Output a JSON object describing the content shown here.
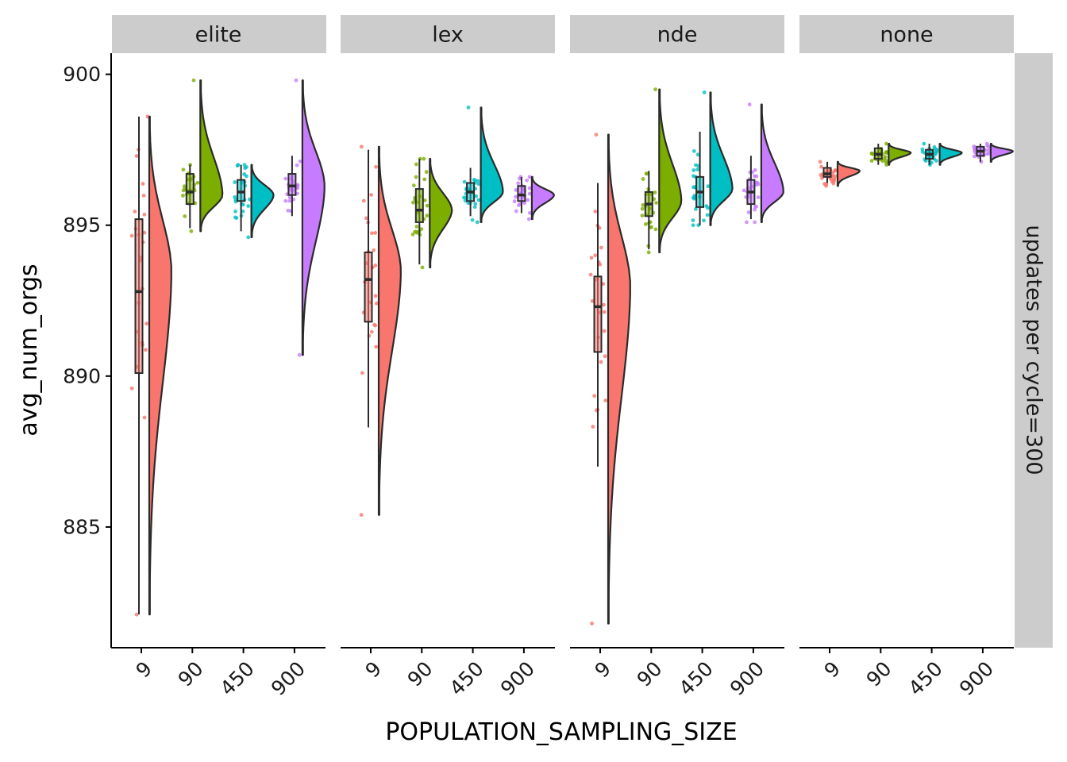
{
  "chart_data": {
    "type": "raincloud",
    "xlabel": "POPULATION_SAMPLING_SIZE",
    "ylabel": "avg_num_orgs",
    "row_strip": "updates per cycle=300",
    "categories": [
      "9",
      "90",
      "450",
      "900"
    ],
    "yticks": [
      885,
      890,
      895,
      900
    ],
    "ylim": [
      881,
      900.7
    ],
    "colors": {
      "9": "#F8766D",
      "90": "#7CAE00",
      "450": "#00BFC4",
      "900": "#C77CFF"
    },
    "legend": "none",
    "grid": false,
    "facets": [
      {
        "name": "elite",
        "groups": [
          {
            "cat": "9",
            "min": 882.1,
            "q1": 890.1,
            "median": 892.8,
            "q3": 895.2,
            "max": 898.6,
            "violin_min": 882.1,
            "violin_max": 898.6,
            "mode": 893.5
          },
          {
            "cat": "90",
            "min": 894.9,
            "q1": 895.7,
            "median": 896.1,
            "q3": 896.7,
            "max": 897.0,
            "violin_min": 894.8,
            "violin_max": 899.8,
            "mode": 896.0
          },
          {
            "cat": "450",
            "min": 894.8,
            "q1": 895.8,
            "median": 896.1,
            "q3": 896.5,
            "max": 897.0,
            "violin_min": 894.6,
            "violin_max": 897.0,
            "mode": 896.0
          },
          {
            "cat": "900",
            "min": 895.3,
            "q1": 896.0,
            "median": 896.3,
            "q3": 896.7,
            "max": 897.3,
            "violin_min": 890.7,
            "violin_max": 899.8,
            "mode": 896.3
          }
        ]
      },
      {
        "name": "lex",
        "groups": [
          {
            "cat": "9",
            "min": 888.3,
            "q1": 891.8,
            "median": 893.2,
            "q3": 894.1,
            "max": 897.5,
            "violin_min": 885.4,
            "violin_max": 897.6,
            "mode": 893.5
          },
          {
            "cat": "90",
            "min": 893.7,
            "q1": 895.1,
            "median": 895.5,
            "q3": 896.2,
            "max": 897.2,
            "violin_min": 893.6,
            "violin_max": 897.2,
            "mode": 895.5
          },
          {
            "cat": "450",
            "min": 895.3,
            "q1": 895.8,
            "median": 896.1,
            "q3": 896.4,
            "max": 896.9,
            "violin_min": 895.1,
            "violin_max": 898.9,
            "mode": 896.1
          },
          {
            "cat": "900",
            "min": 895.4,
            "q1": 895.8,
            "median": 896.0,
            "q3": 896.3,
            "max": 896.6,
            "violin_min": 895.2,
            "violin_max": 896.6,
            "mode": 896.0
          }
        ]
      },
      {
        "name": "nde",
        "groups": [
          {
            "cat": "9",
            "min": 887.0,
            "q1": 890.8,
            "median": 892.3,
            "q3": 893.3,
            "max": 896.4,
            "violin_min": 881.8,
            "violin_max": 898.0,
            "mode": 893.0
          },
          {
            "cat": "90",
            "min": 894.2,
            "q1": 895.3,
            "median": 895.7,
            "q3": 896.1,
            "max": 896.8,
            "violin_min": 894.1,
            "violin_max": 899.5,
            "mode": 895.8
          },
          {
            "cat": "450",
            "min": 895.0,
            "q1": 895.6,
            "median": 896.1,
            "q3": 896.6,
            "max": 898.1,
            "violin_min": 895.0,
            "violin_max": 899.4,
            "mode": 896.2
          },
          {
            "cat": "900",
            "min": 895.2,
            "q1": 895.7,
            "median": 896.1,
            "q3": 896.5,
            "max": 897.3,
            "violin_min": 895.1,
            "violin_max": 899.0,
            "mode": 896.1
          }
        ]
      },
      {
        "name": "none",
        "groups": [
          {
            "cat": "9",
            "min": 896.4,
            "q1": 896.6,
            "median": 896.7,
            "q3": 896.9,
            "max": 897.1,
            "violin_min": 896.3,
            "violin_max": 897.1,
            "mode": 896.8
          },
          {
            "cat": "90",
            "min": 897.0,
            "q1": 897.2,
            "median": 897.35,
            "q3": 897.55,
            "max": 897.7,
            "violin_min": 897.0,
            "violin_max": 897.7,
            "mode": 897.4
          },
          {
            "cat": "450",
            "min": 897.0,
            "q1": 897.2,
            "median": 897.35,
            "q3": 897.5,
            "max": 897.7,
            "violin_min": 897.0,
            "violin_max": 897.7,
            "mode": 897.4
          },
          {
            "cat": "900",
            "min": 897.1,
            "q1": 897.3,
            "median": 897.45,
            "q3": 897.6,
            "max": 897.7,
            "violin_min": 897.1,
            "violin_max": 897.7,
            "mode": 897.45
          }
        ]
      }
    ]
  }
}
